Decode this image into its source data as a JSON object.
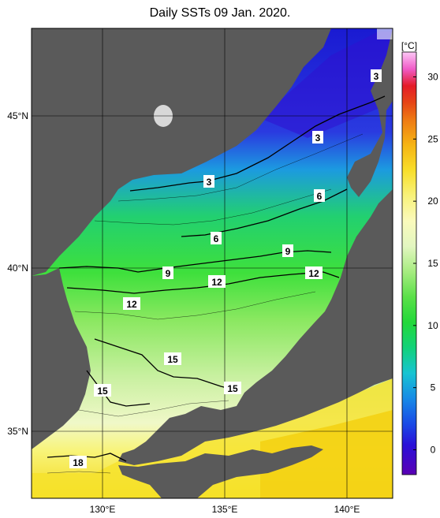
{
  "title": "Daily SSTs 09 Jan. 2020.",
  "longitude_ticks": [
    "130°E",
    "135°E",
    "140°E"
  ],
  "latitude_ticks": [
    "35°N",
    "40°N",
    "45°N"
  ],
  "contour_labels": [
    "3",
    "3",
    "3",
    "6",
    "6",
    "9",
    "9",
    "12",
    "12",
    "12",
    "15",
    "15",
    "15",
    "18"
  ],
  "colorbar": {
    "unit": "[°C]",
    "ticks": [
      "0",
      "5",
      "10",
      "15",
      "20",
      "25",
      "30"
    ],
    "range": [
      -2,
      32
    ],
    "colors": [
      "#5a00b4",
      "#1c1ce0",
      "#1a6ae6",
      "#17b4e6",
      "#11c8a0",
      "#1ed25a",
      "#33dc33",
      "#7ae650",
      "#b6f08c",
      "#eaf8c8",
      "#fafab0",
      "#f8f06e",
      "#f8dc1e",
      "#f6b414",
      "#f08214",
      "#e84a14",
      "#e61e1e",
      "#f04cb4",
      "#f88cec",
      "#fcd2fa"
    ]
  },
  "colors": {
    "land": "#5a5a5a",
    "frame": "#000000"
  }
}
